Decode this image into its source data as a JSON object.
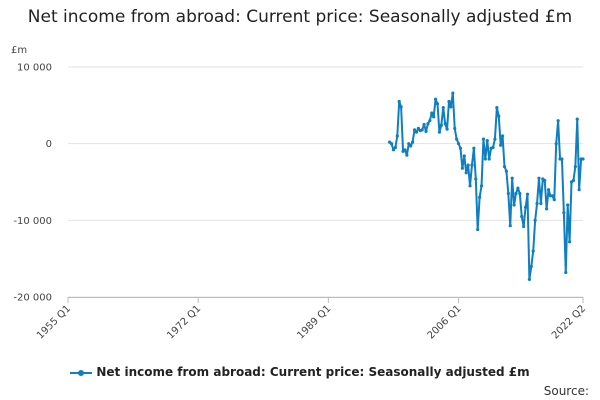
{
  "chart_data": {
    "type": "line",
    "title": "Net income from abroad: Current price: Seasonally adjusted £m",
    "ylabel": "£m",
    "xlabel": "",
    "ylim": [
      -20000,
      10000
    ],
    "yticks": [
      10000,
      0,
      -10000,
      -20000
    ],
    "ytick_labels": [
      "10 000",
      "0",
      "-10 000",
      "-20 000"
    ],
    "xlim": [
      1955.0,
      2022.25
    ],
    "xticks": [
      1955.0,
      1972.0,
      1989.0,
      2006.0,
      2022.25
    ],
    "xtick_labels": [
      "1955 Q1",
      "1972 Q1",
      "1989 Q1",
      "2006 Q1",
      "2022 Q2"
    ],
    "grid": true,
    "legend_position": "bottom",
    "series": [
      {
        "name": "Net income from abroad: Current price: Seasonally adjusted £m",
        "color": "#0f7fc0",
        "x": [
          1997.0,
          1997.25,
          1997.5,
          1997.75,
          1998.0,
          1998.25,
          1998.5,
          1998.75,
          1999.0,
          1999.25,
          1999.5,
          1999.75,
          2000.0,
          2000.25,
          2000.5,
          2000.75,
          2001.0,
          2001.25,
          2001.5,
          2001.75,
          2002.0,
          2002.25,
          2002.5,
          2002.75,
          2003.0,
          2003.25,
          2003.5,
          2003.75,
          2004.0,
          2004.25,
          2004.5,
          2004.75,
          2005.0,
          2005.25,
          2005.5,
          2005.75,
          2006.0,
          2006.25,
          2006.5,
          2006.75,
          2007.0,
          2007.25,
          2007.5,
          2007.75,
          2008.0,
          2008.25,
          2008.5,
          2008.75,
          2009.0,
          2009.25,
          2009.5,
          2009.75,
          2010.0,
          2010.25,
          2010.5,
          2010.75,
          2011.0,
          2011.25,
          2011.5,
          2011.75,
          2012.0,
          2012.25,
          2012.5,
          2012.75,
          2013.0,
          2013.25,
          2013.5,
          2013.75,
          2014.0,
          2014.25,
          2014.5,
          2014.75,
          2015.0,
          2015.25,
          2015.5,
          2015.75,
          2016.0,
          2016.25,
          2016.5,
          2016.75,
          2017.0,
          2017.25,
          2017.5,
          2017.75,
          2018.0,
          2018.25,
          2018.5,
          2018.75,
          2019.0,
          2019.25,
          2019.5,
          2019.75,
          2020.0,
          2020.25,
          2020.5,
          2020.75,
          2021.0,
          2021.25,
          2021.5,
          2021.75,
          2022.0,
          2022.25
        ],
        "values": [
          200,
          0,
          -800,
          -500,
          1000,
          5500,
          4800,
          -1000,
          -800,
          -1500,
          0,
          -300,
          200,
          1800,
          1500,
          2000,
          1700,
          1800,
          2500,
          1600,
          2600,
          3000,
          4000,
          3500,
          5800,
          5200,
          1500,
          2400,
          4700,
          2600,
          1900,
          5500,
          4800,
          6600,
          2000,
          600,
          0,
          -600,
          -3200,
          -1600,
          -3800,
          -2800,
          -5500,
          -2800,
          -600,
          -4600,
          -11200,
          -7000,
          -5500,
          600,
          -2000,
          400,
          -2000,
          -600,
          -500,
          600,
          4700,
          3600,
          -200,
          1000,
          -3000,
          -3600,
          -6500,
          -10700,
          -4500,
          -8000,
          -6500,
          -5800,
          -6500,
          -9500,
          -10800,
          -8300,
          -6600,
          -17700,
          -16000,
          -14000,
          -10000,
          -7800,
          -4500,
          -7800,
          -4600,
          -4800,
          -8500,
          -6000,
          -6800,
          -6800,
          -7300,
          0,
          3000,
          -2000,
          -2000,
          -9000,
          -16800,
          -8000,
          -12800,
          -5000,
          -4800,
          -3000,
          3200,
          -6000,
          -2000,
          -2000
        ]
      }
    ]
  },
  "source_label": "Source:"
}
